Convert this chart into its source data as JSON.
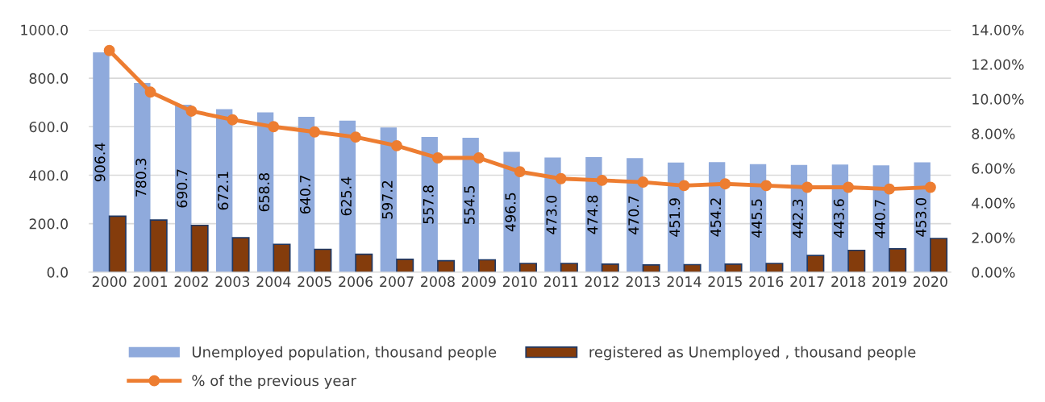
{
  "chart_data": {
    "type": "bar",
    "categories": [
      "2000",
      "2001",
      "2002",
      "2003",
      "2004",
      "2005",
      "2006",
      "2007",
      "2008",
      "2009",
      "2010",
      "2011",
      "2012",
      "2013",
      "2014",
      "2015",
      "2016",
      "2017",
      "2018",
      "2019",
      "2020"
    ],
    "series": [
      {
        "name": "Unemployed population, thousand people",
        "color": "#8faadc",
        "values": [
          906.4,
          780.3,
          690.7,
          672.1,
          658.8,
          640.7,
          625.4,
          597.2,
          557.8,
          554.5,
          496.5,
          473.0,
          474.8,
          470.7,
          451.9,
          454.2,
          445.5,
          442.3,
          443.6,
          440.7,
          453.0
        ],
        "value_labels": [
          "906.4",
          "780.3",
          "690.7",
          "672.1",
          "658.8",
          "640.7",
          "625.4",
          "597.2",
          "557.8",
          "554.5",
          "496.5",
          "473.0",
          "474.8",
          "470.7",
          "451.9",
          "454.2",
          "445.5",
          "442.3",
          "443.6",
          "440.7",
          "453.0"
        ]
      },
      {
        "name": "registered as Unemployed , thousand people",
        "color": "#843c0c",
        "values": [
          231,
          215,
          193,
          142,
          115,
          94,
          74,
          53,
          47,
          51,
          36,
          36,
          33,
          30,
          31,
          33,
          36,
          69,
          90,
          96,
          139
        ]
      },
      {
        "name": "% of the previous year",
        "type": "line",
        "axis": "y2",
        "color": "#ed7d31",
        "marker": "circle",
        "values": [
          12.8,
          10.4,
          9.3,
          8.8,
          8.4,
          8.1,
          7.8,
          7.3,
          6.6,
          6.6,
          5.8,
          5.4,
          5.3,
          5.2,
          5.0,
          5.1,
          5.0,
          4.9,
          4.9,
          4.8,
          4.9
        ]
      }
    ],
    "ylim": [
      0,
      1000
    ],
    "yticks": [
      {
        "value": 0,
        "label": "0.0"
      },
      {
        "value": 200,
        "label": "200.0"
      },
      {
        "value": 400,
        "label": "400.0"
      },
      {
        "value": 600,
        "label": "600.0"
      },
      {
        "value": 800,
        "label": "800.0"
      },
      {
        "value": 1000,
        "label": "1000.0"
      }
    ],
    "y2lim": [
      0,
      14
    ],
    "y2ticks": [
      {
        "value": 0,
        "label": "0.00%"
      },
      {
        "value": 2,
        "label": "2.00%"
      },
      {
        "value": 4,
        "label": "4.00%"
      },
      {
        "value": 6,
        "label": "6.00%"
      },
      {
        "value": 8,
        "label": "8.00%"
      },
      {
        "value": 10,
        "label": "10.00%"
      },
      {
        "value": 12,
        "label": "12.00%"
      },
      {
        "value": 14,
        "label": "14.00%"
      }
    ],
    "grid": "y",
    "legend": "bottom"
  }
}
